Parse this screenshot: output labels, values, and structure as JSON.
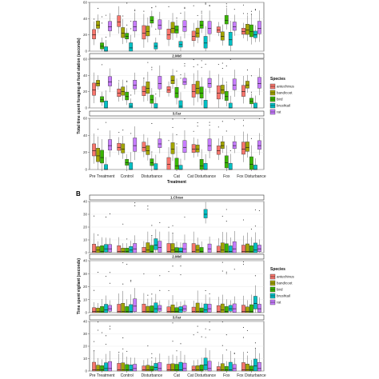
{
  "chart_data": [
    {
      "type": "box",
      "panel_letter": "",
      "ylabel": "Total time spent foraging at food station (seconds)",
      "xlabel": "Treatment",
      "categories": [
        "Pre Treatment",
        "Control",
        "Disturbance",
        "Cat",
        "Cat Disturbance",
        "Fox",
        "Fox Disturbance"
      ],
      "ylim": [
        0,
        60
      ],
      "yticks": [
        0,
        20,
        40,
        60
      ],
      "legend": {
        "title": "Species",
        "position": "right"
      },
      "facets": [
        {
          "label": "",
          "median": [
            [
              20,
              36,
              22,
              20,
              18,
              26,
              24
            ],
            [
              32,
              22,
              24,
              28,
              22,
              18,
              26
            ],
            [
              6,
              18,
              38,
              26,
              32,
              38,
              24
            ],
            [
              0,
              4,
              6,
              8,
              10,
              14,
              20
            ],
            [
              30,
              30,
              32,
              30,
              28,
              30,
              28
            ]
          ]
        },
        {
          "label": "2.Mid",
          "median": [
            [
              22,
              18,
              20,
              22,
              20,
              18,
              20
            ],
            [
              30,
              20,
              24,
              34,
              24,
              22,
              28
            ],
            [
              10,
              14,
              10,
              18,
              18,
              14,
              8
            ],
            [
              0,
              2,
              0,
              2,
              0,
              0,
              0
            ],
            [
              32,
              28,
              30,
              32,
              30,
              28,
              30
            ]
          ]
        },
        {
          "label": "3.Far",
          "median": [
            [
              22,
              26,
              26,
              6,
              24,
              22,
              24
            ],
            [
              16,
              24,
              22,
              24,
              24,
              28,
              26
            ],
            [
              14,
              8,
              8,
              4,
              4,
              8,
              6
            ],
            [
              0,
              0,
              0,
              0,
              0,
              0,
              0
            ],
            [
              28,
              28,
              30,
              26,
              28,
              28,
              28
            ]
          ]
        }
      ]
    },
    {
      "type": "box",
      "panel_letter": "B",
      "ylabel": "Time spent vigilant (seconds)",
      "xlabel": "Treatment",
      "categories": [
        "Pre Treatment",
        "Control",
        "Disturbance",
        "Cat",
        "Cat Disturbance",
        "Fox",
        "Fox Disturbance"
      ],
      "ylim": [
        0,
        40
      ],
      "yticks": [
        0,
        10,
        20,
        30,
        40
      ],
      "legend": {
        "title": "Species",
        "position": "right"
      },
      "facets": [
        {
          "label": "1.Close",
          "median": [
            [
              1,
              1,
              1,
              1,
              1,
              1,
              1
            ],
            [
              2,
              1,
              2,
              2,
              2,
              2,
              1
            ],
            [
              1,
              1,
              1,
              1,
              1,
              1,
              1
            ],
            [
              3,
              2,
              6,
              1,
              30,
              1,
              2
            ],
            [
              3,
              3,
              4,
              3,
              3,
              3,
              3
            ]
          ]
        },
        {
          "label": "2.Mid",
          "median": [
            [
              1,
              1,
              1,
              1,
              1,
              1,
              1
            ],
            [
              1,
              1,
              1,
              1,
              1,
              2,
              1
            ],
            [
              1,
              1,
              1,
              1,
              1,
              1,
              1
            ],
            [
              2,
              1,
              3,
              2,
              2,
              3,
              7
            ],
            [
              3,
              5,
              3,
              3,
              3,
              3,
              3
            ]
          ]
        },
        {
          "label": "3.Far",
          "median": [
            [
              1,
              1,
              1,
              1,
              1,
              1,
              1
            ],
            [
              1,
              1,
              1,
              1,
              1,
              1,
              1
            ],
            [
              1,
              1,
              1,
              1,
              1,
              1,
              1
            ],
            [
              2,
              1,
              3,
              1,
              5,
              1,
              4
            ],
            [
              2,
              2,
              2,
              2,
              2,
              2,
              2
            ]
          ]
        }
      ]
    }
  ],
  "species": [
    {
      "name": "antechinus",
      "color": "#f8766d"
    },
    {
      "name": "bandicoot",
      "color": "#a3a500"
    },
    {
      "name": "bird",
      "color": "#39b600"
    },
    {
      "name": "brushtail",
      "color": "#00bfc4"
    },
    {
      "name": "rat",
      "color": "#c77cff"
    }
  ]
}
